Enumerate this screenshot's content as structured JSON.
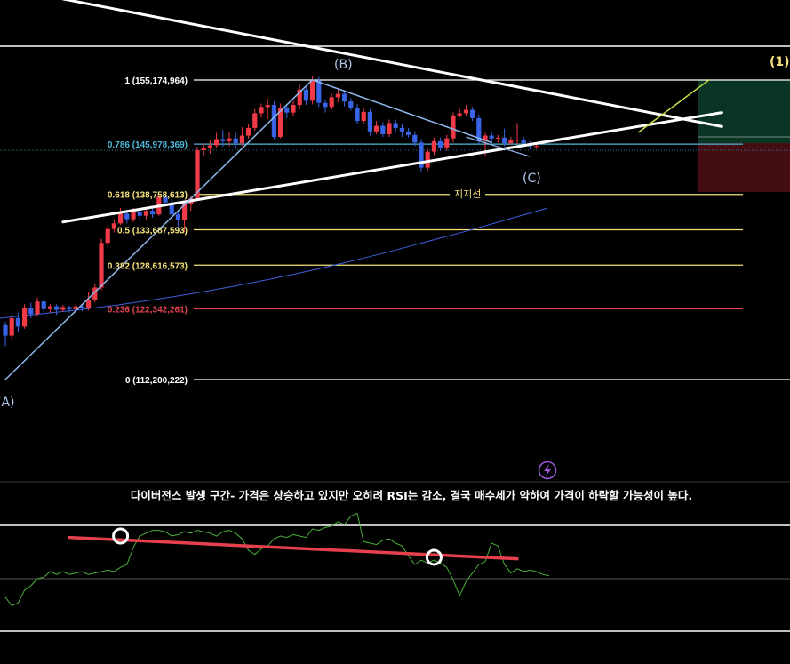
{
  "chart_data": {
    "type": "candlestick",
    "price_panel": {
      "fib_levels": [
        {
          "ratio": "1",
          "label": "1 (155,174,964)",
          "price": 155174964,
          "color": "#ffffff"
        },
        {
          "ratio": "0.786",
          "label": "0.786 (145,978,369)",
          "price": 145978369,
          "color": "#4fb8d8"
        },
        {
          "ratio": "0.618",
          "label": "0.618 (138,758,613)",
          "price": 138758613,
          "color": "#f5e27a"
        },
        {
          "ratio": "0.5",
          "label": "0.5 (133,687,593)",
          "price": 133687593,
          "color": "#f5e27a"
        },
        {
          "ratio": "0.382",
          "label": "0.382 (128,616,573)",
          "price": 128616573,
          "color": "#f5e27a"
        },
        {
          "ratio": "0.236",
          "label": "0.236 (122,342,261)",
          "price": 122342261,
          "color": "#e0454f"
        },
        {
          "ratio": "0",
          "label": "0 (112,200,222)",
          "price": 112200222,
          "color": "#ffffff"
        }
      ],
      "wave_labels": [
        "(A)",
        "(B)",
        "(C)",
        "(1)"
      ],
      "support_label": "지지선",
      "candles": [
        [
          120.0,
          118.5,
          120.5,
          117.0
        ],
        [
          118.5,
          121.0,
          121.5,
          118.0
        ],
        [
          121.0,
          119.8,
          121.8,
          119.0
        ],
        [
          119.8,
          122.5,
          123.0,
          119.5
        ],
        [
          122.5,
          121.6,
          123.2,
          121.0
        ],
        [
          121.6,
          123.4,
          124.0,
          121.2
        ],
        [
          123.4,
          122.3,
          123.8,
          121.9
        ],
        [
          122.3,
          122.7,
          123.0,
          121.8
        ],
        [
          122.7,
          122.2,
          123.0,
          121.5
        ],
        [
          122.2,
          122.6,
          122.9,
          121.9
        ],
        [
          122.6,
          122.3,
          122.8,
          121.8
        ],
        [
          122.3,
          122.7,
          123.0,
          121.9
        ],
        [
          122.7,
          122.4,
          123.1,
          122.0
        ],
        [
          122.4,
          123.6,
          124.8,
          122.1
        ],
        [
          123.6,
          125.4,
          126.0,
          123.3
        ],
        [
          125.4,
          131.8,
          132.4,
          125.0
        ],
        [
          131.8,
          133.8,
          134.3,
          131.2
        ],
        [
          133.8,
          134.6,
          135.2,
          133.3
        ],
        [
          134.6,
          136.0,
          136.8,
          134.4
        ],
        [
          136.0,
          135.2,
          136.4,
          134.6
        ],
        [
          135.2,
          136.2,
          136.8,
          134.8
        ],
        [
          136.2,
          135.7,
          136.7,
          135.1
        ],
        [
          135.7,
          136.4,
          136.9,
          135.2
        ],
        [
          136.4,
          135.9,
          136.8,
          135.4
        ],
        [
          135.9,
          138.4,
          138.9,
          135.7
        ],
        [
          138.4,
          137.6,
          138.9,
          137.1
        ],
        [
          137.6,
          135.9,
          138.1,
          135.3
        ],
        [
          135.9,
          135.1,
          136.3,
          133.2
        ],
        [
          135.1,
          137.4,
          137.9,
          133.4
        ],
        [
          137.4,
          138.2,
          138.6,
          136.4
        ],
        [
          138.2,
          145.1,
          145.6,
          138.0
        ],
        [
          145.1,
          145.4,
          146.1,
          144.2
        ],
        [
          145.4,
          145.8,
          146.5,
          144.6
        ],
        [
          145.8,
          146.7,
          147.6,
          145.4
        ],
        [
          146.7,
          146.4,
          148.0,
          145.6
        ],
        [
          146.4,
          146.8,
          147.8,
          145.7
        ],
        [
          146.8,
          146.1,
          147.6,
          145.3
        ],
        [
          146.1,
          147.2,
          148.4,
          145.7
        ],
        [
          147.2,
          148.3,
          148.8,
          146.8
        ],
        [
          148.3,
          150.4,
          151.0,
          147.9
        ],
        [
          150.4,
          151.3,
          151.8,
          149.8
        ],
        [
          151.3,
          151.6,
          152.5,
          149.6
        ],
        [
          151.6,
          147.0,
          152.1,
          146.6
        ],
        [
          147.0,
          151.1,
          151.8,
          146.8
        ],
        [
          151.1,
          150.5,
          151.6,
          149.7
        ],
        [
          150.5,
          151.6,
          152.2,
          150.0
        ],
        [
          151.6,
          153.8,
          154.5,
          151.0
        ],
        [
          153.8,
          152.2,
          154.3,
          151.6
        ],
        [
          152.2,
          155.1,
          155.7,
          151.7
        ],
        [
          155.1,
          151.9,
          155.6,
          151.3
        ],
        [
          151.9,
          151.3,
          152.4,
          150.5
        ],
        [
          151.3,
          152.7,
          153.2,
          150.9
        ],
        [
          152.7,
          153.2,
          153.8,
          152.0
        ],
        [
          153.2,
          152.1,
          153.6,
          151.4
        ],
        [
          152.1,
          151.2,
          152.6,
          150.8
        ],
        [
          151.2,
          149.3,
          151.7,
          148.8
        ],
        [
          149.3,
          150.6,
          151.2,
          148.9
        ],
        [
          150.6,
          147.8,
          151.0,
          147.2
        ],
        [
          147.8,
          148.6,
          149.3,
          147.4
        ],
        [
          148.6,
          147.4,
          149.1,
          147.0
        ],
        [
          147.4,
          149.0,
          149.5,
          147.0
        ],
        [
          149.0,
          148.3,
          149.5,
          147.8
        ],
        [
          148.3,
          147.8,
          148.8,
          147.0
        ],
        [
          147.8,
          147.3,
          148.3,
          146.9
        ],
        [
          147.3,
          146.2,
          147.8,
          145.7
        ],
        [
          146.2,
          142.6,
          146.7,
          141.9
        ],
        [
          142.6,
          144.9,
          145.3,
          142.2
        ],
        [
          144.9,
          146.4,
          146.9,
          144.4
        ],
        [
          146.4,
          145.5,
          146.9,
          145.0
        ],
        [
          145.5,
          146.8,
          147.3,
          145.0
        ],
        [
          146.8,
          150.1,
          150.5,
          146.2
        ],
        [
          150.1,
          150.4,
          151.0,
          149.8
        ],
        [
          150.4,
          150.9,
          151.6,
          150.0
        ],
        [
          150.9,
          149.7,
          151.3,
          149.3
        ],
        [
          149.7,
          146.4,
          150.2,
          146.0
        ],
        [
          146.4,
          147.2,
          147.6,
          144.3
        ],
        [
          147.2,
          146.8,
          147.8,
          146.2
        ],
        [
          146.8,
          146.9,
          147.3,
          146.2
        ],
        [
          146.9,
          146.1,
          148.2,
          145.7
        ],
        [
          146.1,
          146.5,
          147.0,
          145.9
        ],
        [
          146.5,
          146.6,
          149.0,
          146.0
        ],
        [
          146.6,
          146.1,
          147.0,
          145.4
        ],
        [
          146.1,
          145.7,
          146.4,
          145.2
        ],
        [
          145.7,
          145.7,
          146.0,
          145.3
        ]
      ],
      "moving_average": [
        121.0,
        121.6,
        122.2,
        122.9,
        123.7,
        124.6,
        125.6,
        126.7,
        127.9,
        129.2,
        130.6,
        132.1,
        133.6,
        135.2,
        136.8
      ],
      "trendlines": [
        {
          "name": "upper-trendline",
          "from": [
            0,
            168.4
          ],
          "to": [
            112,
            148.5
          ]
        },
        {
          "name": "lower-support",
          "from": [
            9,
            134.8
          ],
          "to": [
            112,
            150.5
          ]
        },
        {
          "name": "wave-a-b",
          "from": [
            0,
            112.2
          ],
          "to": [
            48,
            155.2
          ]
        },
        {
          "name": "wave-b-c",
          "from": [
            48,
            155.2
          ],
          "to": [
            76,
            146.2
          ]
        },
        {
          "name": "wave-c-1",
          "from": [
            99,
            147.7
          ],
          "to": [
            110,
            155.2
          ]
        }
      ]
    },
    "rsi_panel": {
      "annotation": "다이버전스 발생 구간- 가격은 상승하고 있지만 오히려 RSI는 감소, 결국 매수세가 약하여 가격이 하락할 가능성이 높다.",
      "rsi": [
        37,
        31,
        33,
        42,
        45,
        50,
        51,
        55,
        53,
        55,
        53,
        54,
        55,
        53,
        54,
        55,
        56,
        55,
        58,
        60,
        72,
        80,
        82,
        84,
        84,
        83,
        80,
        81,
        83,
        82,
        84,
        83,
        82,
        80,
        83,
        84,
        82,
        78,
        70,
        67,
        71,
        73,
        78,
        80,
        79,
        81,
        80,
        79,
        85,
        84,
        86,
        87,
        90,
        88,
        94,
        96,
        76,
        75,
        74,
        77,
        78,
        75,
        73,
        66,
        60,
        63,
        61,
        63,
        61,
        58,
        49,
        38,
        48,
        54,
        60,
        62,
        75,
        73,
        60,
        54,
        57,
        55,
        56,
        55,
        53,
        52
      ],
      "divergence_line": {
        "from": [
          10,
          79
        ],
        "to": [
          80,
          64
        ]
      },
      "divergence_points": [
        {
          "x": 18,
          "rsi": 80
        },
        {
          "x": 67,
          "rsi": 65
        }
      ]
    }
  }
}
